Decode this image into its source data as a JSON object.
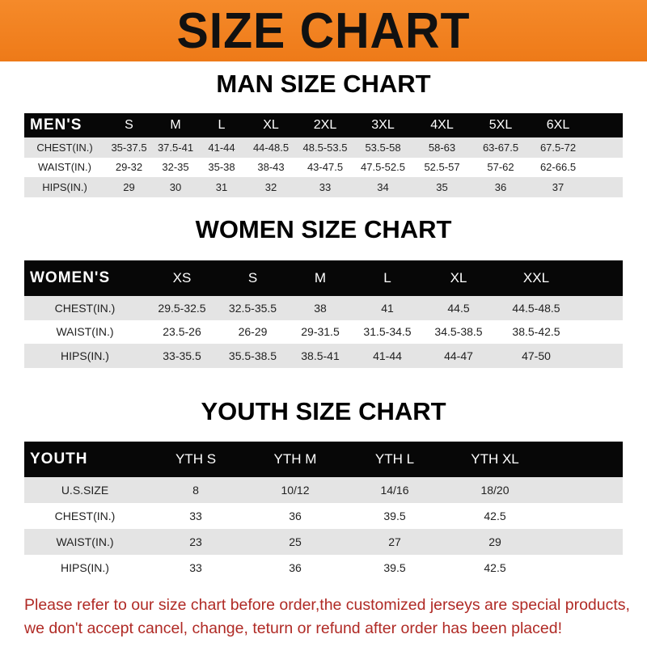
{
  "banner": {
    "title": "SIZE CHART",
    "color": "#f08020"
  },
  "men": {
    "title": "MAN SIZE CHART",
    "header": [
      "MEN'S",
      "S",
      "M",
      "L",
      "XL",
      "2XL",
      "3XL",
      "4XL",
      "5XL",
      "6XL"
    ],
    "rows": [
      [
        "CHEST(IN.)",
        "35-37.5",
        "37.5-41",
        "41-44",
        "44-48.5",
        "48.5-53.5",
        "53.5-58",
        "58-63",
        "63-67.5",
        "67.5-72"
      ],
      [
        "WAIST(IN.)",
        "29-32",
        "32-35",
        "35-38",
        "38-43",
        "43-47.5",
        "47.5-52.5",
        "52.5-57",
        "57-62",
        "62-66.5"
      ],
      [
        "HIPS(IN.)",
        "29",
        "30",
        "31",
        "32",
        "33",
        "34",
        "35",
        "36",
        "37"
      ]
    ]
  },
  "women": {
    "title": "WOMEN SIZE CHART",
    "header": [
      "WOMEN'S",
      "XS",
      "S",
      "M",
      "L",
      "XL",
      "XXL"
    ],
    "rows": [
      [
        "CHEST(IN.)",
        "29.5-32.5",
        "32.5-35.5",
        "38",
        "41",
        "44.5",
        "44.5-48.5"
      ],
      [
        "WAIST(IN.)",
        "23.5-26",
        "26-29",
        "29-31.5",
        "31.5-34.5",
        "34.5-38.5",
        "38.5-42.5"
      ],
      [
        "HIPS(IN.)",
        "33-35.5",
        "35.5-38.5",
        "38.5-41",
        "41-44",
        "44-47",
        "47-50"
      ]
    ]
  },
  "youth": {
    "title": "YOUTH SIZE CHART",
    "header": [
      "YOUTH",
      "YTH S",
      "YTH M",
      "YTH L",
      "YTH XL"
    ],
    "rows": [
      [
        "U.S.SIZE",
        "8",
        "10/12",
        "14/16",
        "18/20"
      ],
      [
        "CHEST(IN.)",
        "33",
        "36",
        "39.5",
        "42.5"
      ],
      [
        "WAIST(IN.)",
        "23",
        "25",
        "27",
        "29"
      ],
      [
        "HIPS(IN.)",
        "33",
        "36",
        "39.5",
        "42.5"
      ]
    ]
  },
  "note": {
    "line1": "Please refer to our size chart before order,the customized jerseys are special products,",
    "line2": "we don't accept cancel, change, teturn or refund after order has been placed!",
    "color": "#b02a25"
  }
}
